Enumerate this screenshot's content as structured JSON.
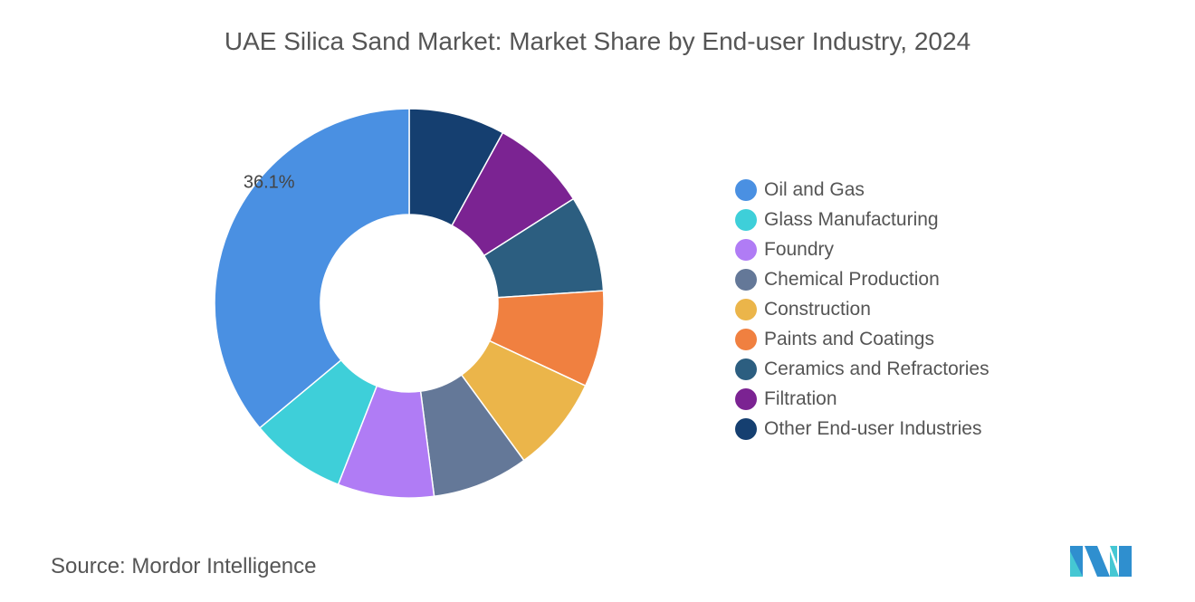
{
  "chart_data": {
    "type": "pie",
    "variant": "donut",
    "title": "UAE Silica Sand Market: Market Share by End-user Industry, 2024",
    "legend_position": "right",
    "series": [
      {
        "name": "Oil and Gas",
        "value": 36.1,
        "color": "#4a90e2",
        "label": "36.1%"
      },
      {
        "name": "Glass Manufacturing",
        "value": 8.0,
        "color": "#3ecfd9"
      },
      {
        "name": "Foundry",
        "value": 8.0,
        "color": "#b07cf5"
      },
      {
        "name": "Chemical Production",
        "value": 8.0,
        "color": "#647898"
      },
      {
        "name": "Construction",
        "value": 8.0,
        "color": "#ebb54a"
      },
      {
        "name": "Paints and Coatings",
        "value": 8.0,
        "color": "#f08040"
      },
      {
        "name": "Ceramics and Refractories",
        "value": 8.0,
        "color": "#2c5e80"
      },
      {
        "name": "Filtration",
        "value": 8.0,
        "color": "#7b2392"
      },
      {
        "name": "Other End-user Industries",
        "value": 8.0,
        "color": "#153f70"
      }
    ]
  },
  "source": {
    "label": "Source:",
    "value": "Mordor Intelligence"
  },
  "logo": {
    "name": "mordor-intelligence-logo",
    "text": "MI"
  }
}
